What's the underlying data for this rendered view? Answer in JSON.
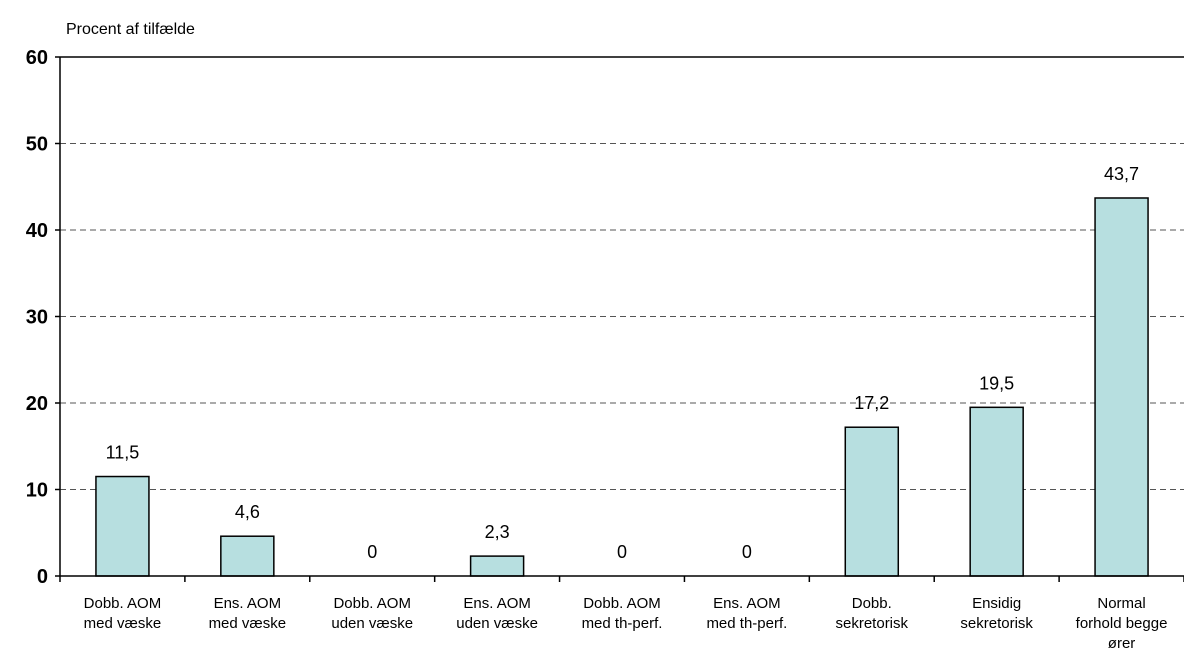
{
  "chart_data": {
    "type": "bar",
    "title": "",
    "ylabel": "Procent af tilfælde",
    "xlabel": "",
    "ylim": [
      0,
      60
    ],
    "yticks": [
      0,
      10,
      20,
      30,
      40,
      50,
      60
    ],
    "grid": "horizontal-dashed",
    "bar_color": "#b7dfe0",
    "categories": [
      [
        "Dobb. AOM",
        "med væske"
      ],
      [
        "Ens. AOM",
        "med væske"
      ],
      [
        "Dobb. AOM",
        "uden væske"
      ],
      [
        "Ens. AOM",
        "uden væske"
      ],
      [
        "Dobb. AOM",
        "med th-perf."
      ],
      [
        "Ens. AOM",
        "med th-perf."
      ],
      [
        "Dobb.",
        "sekretorisk"
      ],
      [
        "Ensidig",
        "sekretorisk"
      ],
      [
        "Normal",
        "forhold begge",
        "ører"
      ]
    ],
    "values": [
      11.5,
      4.6,
      0,
      2.3,
      0,
      0,
      17.2,
      19.5,
      43.7
    ],
    "data_labels": [
      "11,5",
      "4,6",
      "0",
      "2,3",
      "0",
      "0",
      "17,2",
      "19,5",
      "43,7"
    ]
  }
}
